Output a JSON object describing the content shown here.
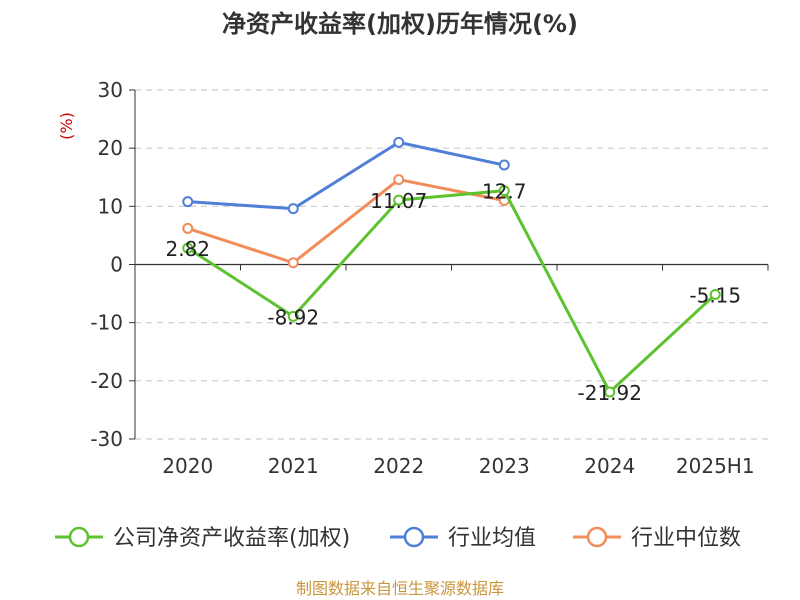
{
  "chart_data": {
    "type": "line",
    "title": "净资产收益率(加权)历年情况(%)",
    "ylabel": "(%)",
    "xlabel": "",
    "categories": [
      "2020",
      "2021",
      "2022",
      "2023",
      "2024",
      "2025H1"
    ],
    "ylim": [
      -30,
      30
    ],
    "yticks": [
      30,
      20,
      10,
      0,
      -10,
      -20,
      -30
    ],
    "grid": true,
    "legend_position": "bottom",
    "series": [
      {
        "name": "公司净资产收益率(加权)",
        "color": "#5cc22e",
        "values": [
          2.82,
          -8.92,
          11.07,
          12.7,
          -21.92,
          -5.15
        ],
        "labels": [
          "2.82",
          "-8.92",
          "11.07",
          "12.7",
          "-21.92",
          "-5.15"
        ]
      },
      {
        "name": "行业均值",
        "color": "#4f7fd6",
        "values": [
          10.8,
          9.6,
          21.0,
          17.1,
          null,
          null
        ]
      },
      {
        "name": "行业中位数",
        "color": "#f28c5a",
        "values": [
          6.2,
          0.3,
          14.6,
          11.0,
          null,
          null
        ]
      }
    ],
    "source": "制图数据来自恒生聚源数据库"
  }
}
